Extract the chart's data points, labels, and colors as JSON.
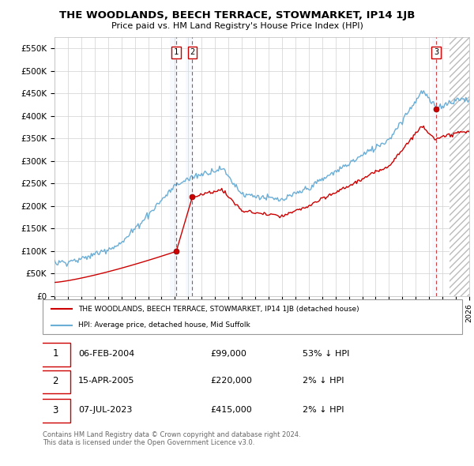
{
  "title": "THE WOODLANDS, BEECH TERRACE, STOWMARKET, IP14 1JB",
  "subtitle": "Price paid vs. HM Land Registry's House Price Index (HPI)",
  "ylabel_ticks": [
    "£0",
    "£50K",
    "£100K",
    "£150K",
    "£200K",
    "£250K",
    "£300K",
    "£350K",
    "£400K",
    "£450K",
    "£500K",
    "£550K"
  ],
  "ytick_values": [
    0,
    50000,
    100000,
    150000,
    200000,
    250000,
    300000,
    350000,
    400000,
    450000,
    500000,
    550000
  ],
  "ylim": [
    0,
    575000
  ],
  "xlim_start": 1995.0,
  "xlim_end": 2026.0,
  "hpi_color": "#6baed6",
  "price_color": "#cc0000",
  "sale_marker_color": "#cc0000",
  "grid_color": "#d0d0d0",
  "vline_color": "#cc4444",
  "shade_color": "#ddeeff",
  "hatch_color": "#e8e8e8",
  "background_color": "#ffffff",
  "transactions": [
    {
      "date_num": 2004.1,
      "price": 99000,
      "label": "1",
      "date_str": "06-FEB-2004"
    },
    {
      "date_num": 2005.3,
      "price": 220000,
      "label": "2",
      "date_str": "15-APR-2005"
    },
    {
      "date_num": 2023.52,
      "price": 415000,
      "label": "3",
      "date_str": "07-JUL-2023"
    }
  ],
  "legend_entries": [
    {
      "label": "THE WOODLANDS, BEECH TERRACE, STOWMARKET, IP14 1JB (detached house)",
      "color": "#cc0000"
    },
    {
      "label": "HPI: Average price, detached house, Mid Suffolk",
      "color": "#6baed6"
    }
  ],
  "table_rows": [
    {
      "num": "1",
      "date": "06-FEB-2004",
      "price": "£99,000",
      "hpi": "53% ↓ HPI"
    },
    {
      "num": "2",
      "date": "15-APR-2005",
      "price": "£220,000",
      "hpi": "2% ↓ HPI"
    },
    {
      "num": "3",
      "date": "07-JUL-2023",
      "price": "£415,000",
      "hpi": "2% ↓ HPI"
    }
  ],
  "footer": "Contains HM Land Registry data © Crown copyright and database right 2024.\nThis data is licensed under the Open Government Licence v3.0.",
  "hatch_start": 2024.5
}
